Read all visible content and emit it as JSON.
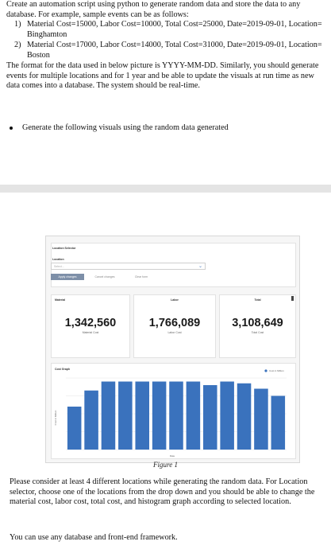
{
  "intro": "Create an automation script using python to generate random data and store the data to any database. For example, sample events can be as follows:",
  "examples": [
    {
      "num": "1)",
      "text": "Material Cost=15000, Labor Cost=10000, Total Cost=25000, Date=2019-09-01, Location= Binghamton"
    },
    {
      "num": "2)",
      "text": "Material Cost=17000, Labor Cost=14000, Total Cost=31000, Date=2019-09-01, Location= Boston"
    }
  ],
  "format_note": "The format for the data used in below picture is YYYY-MM-DD. Similarly, you should generate events for multiple locations and for 1 year and be able to update the visuals at run time as new data comes into a database. The system should be real-time.",
  "bullet": "Generate the following visuals using the random data generated",
  "dashboard": {
    "location_selector_title": "Location Selector",
    "location_label": "Location",
    "select_placeholder": "Select...",
    "apply_label": "Apply changes",
    "cancel_label": "Cancel changes",
    "clear_label": "Clear form",
    "kpis": [
      {
        "title": "Material",
        "value": "1,342,560",
        "sub": "Material Cost"
      },
      {
        "title": "Labor",
        "value": "1,766,089",
        "sub": "Labor Cost"
      },
      {
        "title": "Total",
        "value": "3,108,649",
        "sub": "Total Cost"
      }
    ],
    "chart_title": "Cost Graph",
    "legend_label": "Cost in Million",
    "x_label": "Date",
    "y_label": "Cost in Million",
    "accent": "#3a72bd"
  },
  "chart_data": {
    "type": "bar",
    "categories": [
      "",
      "",
      "",
      "",
      "",
      "",
      "",
      "",
      "",
      "",
      "",
      "",
      ""
    ],
    "values": [
      2.4,
      3.3,
      3.8,
      3.8,
      3.8,
      3.8,
      3.8,
      3.8,
      3.6,
      3.8,
      3.7,
      3.4,
      3.0
    ],
    "xlabel": "Date",
    "ylabel": "Cost in Million",
    "ylim": [
      0,
      4
    ],
    "grid": true
  },
  "figure_caption": "Figure 1",
  "instructions": "Please consider at least 4 different locations while generating the random data. For Location selector, choose one of the locations from the drop down and you should be able to change the material cost, labor cost, total cost, and histogram graph according to selected location.",
  "closing": "You can use any database and front-end framework."
}
